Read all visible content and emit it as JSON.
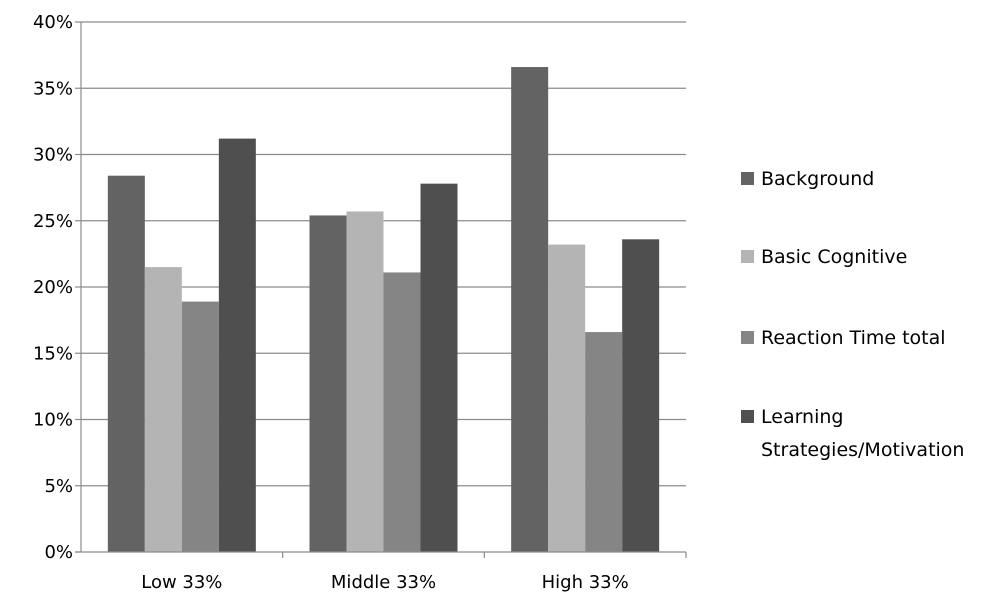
{
  "chart_data": {
    "type": "bar",
    "title": "",
    "xlabel": "",
    "ylabel": "",
    "categories": [
      "Low 33%",
      "Middle 33%",
      "High 33%"
    ],
    "series": [
      {
        "name": "Background",
        "color": "#636363",
        "values": [
          28.4,
          25.4,
          36.6
        ]
      },
      {
        "name": "Basic Cognitive",
        "color": "#b4b4b4",
        "values": [
          21.5,
          25.7,
          23.2
        ]
      },
      {
        "name": "Reaction Time total",
        "color": "#858585",
        "values": [
          18.9,
          21.1,
          16.6
        ]
      },
      {
        "name": "Learning Strategies/Motivation",
        "color": "#4f4f4f",
        "values": [
          31.2,
          27.8,
          23.6
        ]
      }
    ],
    "ylim": [
      0,
      40
    ],
    "yticks": [
      "0%",
      "5%",
      "10%",
      "15%",
      "20%",
      "25%",
      "30%",
      "35%",
      "40%"
    ],
    "legend_position": "right",
    "grid": true
  }
}
